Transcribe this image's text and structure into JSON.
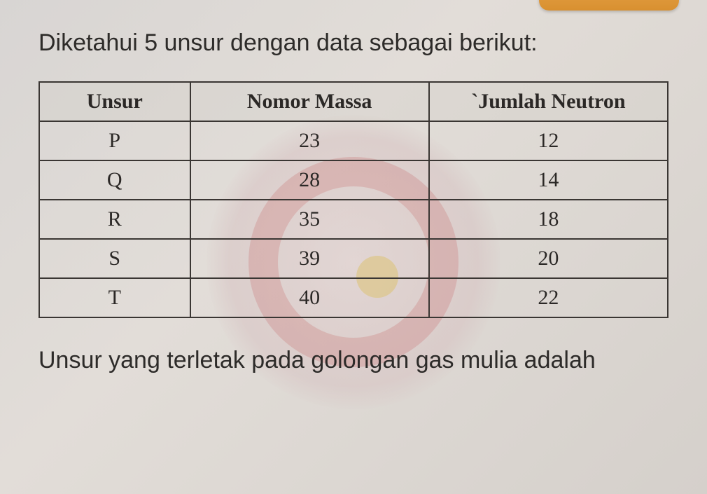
{
  "question_intro": "Diketahui 5 unsur dengan data sebagai berikut:",
  "question_end": "Unsur yang terletak pada golongan gas mulia adalah",
  "table": {
    "columns": [
      "Unsur",
      "Nomor Massa",
      "`Jumlah Neutron"
    ],
    "rows": [
      [
        "P",
        "23",
        "12"
      ],
      [
        "Q",
        "28",
        "14"
      ],
      [
        "R",
        "35",
        "18"
      ],
      [
        "S",
        "39",
        "20"
      ],
      [
        "T",
        "40",
        "22"
      ]
    ],
    "border_color": "#3a3633",
    "header_font": "Times New Roman",
    "header_fontsize": 30,
    "cell_fontsize": 30,
    "text_color": "#2b2826"
  },
  "body_text": {
    "font": "Arial",
    "fontsize": 34,
    "color": "#2d2b29"
  },
  "background_color": "#d8d5d3",
  "watermark": {
    "ring_color": "rgba(200,110,110,0.28)",
    "dot_color": "rgba(220,190,95,0.45)"
  }
}
